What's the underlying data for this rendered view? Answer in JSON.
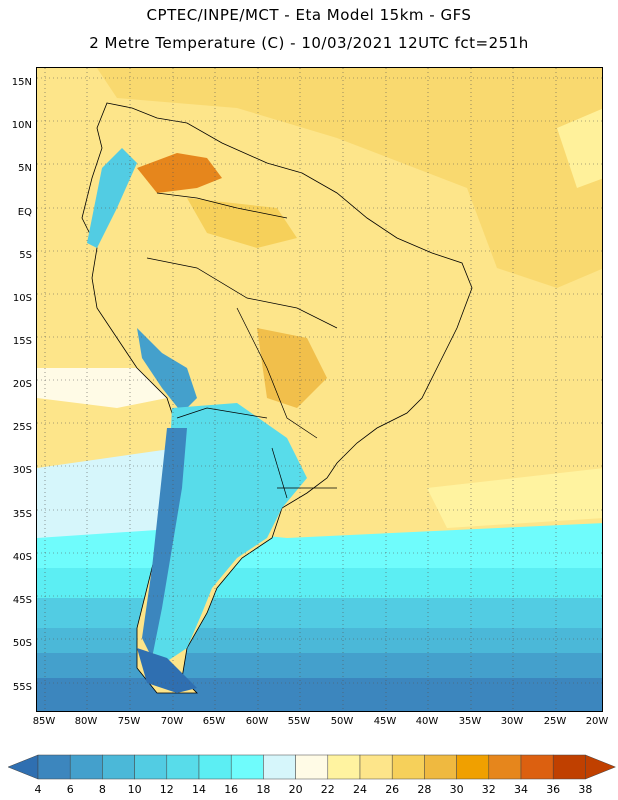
{
  "header": {
    "line1": "CPTEC/INPE/MCT -  Eta Model 15km - GFS",
    "line2": "2 Metre Temperature (C) - 10/03/2021 12UTC fct=251h"
  },
  "map": {
    "lat_labels": [
      "15N",
      "10N",
      "5N",
      "EQ",
      "5S",
      "10S",
      "15S",
      "20S",
      "25S",
      "30S",
      "35S",
      "40S",
      "45S",
      "50S",
      "55S"
    ],
    "lon_labels": [
      "85W",
      "80W",
      "75W",
      "70W",
      "65W",
      "60W",
      "55W",
      "50W",
      "45W",
      "40W",
      "35W",
      "30W",
      "25W",
      "20W"
    ],
    "colors": {
      "c4": "#2f6fb1",
      "c6": "#3c86be",
      "c8": "#44a0cc",
      "c10": "#4bb8d8",
      "c12": "#52cce3",
      "c14": "#58dcea",
      "c16": "#5ceef3",
      "c18": "#6ffcfc",
      "c20": "#d6f6fb",
      "c22": "#fffbe6",
      "c24": "#fff3a0",
      "c26": "#fde58a",
      "c28": "#f6d05a",
      "c30": "#efb940",
      "c32": "#f0a000",
      "c34": "#e6861c",
      "c36": "#dc6010",
      "c38": "#c04000"
    }
  },
  "colorbar": {
    "labels": [
      "4",
      "6",
      "8",
      "10",
      "12",
      "14",
      "16",
      "18",
      "20",
      "22",
      "24",
      "26",
      "28",
      "30",
      "32",
      "34",
      "36",
      "38"
    ]
  }
}
